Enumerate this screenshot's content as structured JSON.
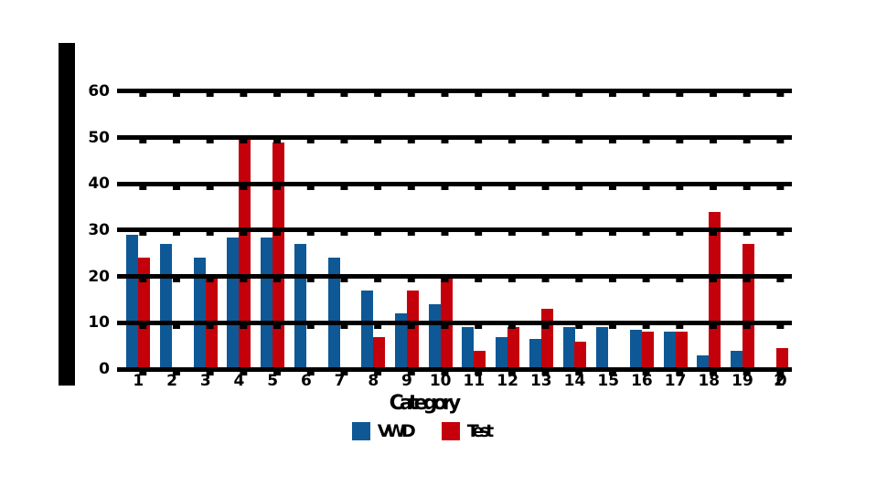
{
  "chart_data": {
    "type": "bar",
    "title": "",
    "xlabel": "Category",
    "ylabel": "",
    "categories": [
      "1",
      "2",
      "3",
      "4",
      "5",
      "6",
      "7",
      "8",
      "9",
      "10",
      "11",
      "12",
      "13",
      "14",
      "15",
      "16",
      "17",
      "18",
      "19",
      "20"
    ],
    "series": [
      {
        "name": "VWD",
        "color": "#0E5896",
        "values": [
          29,
          27,
          24,
          28.5,
          28.5,
          27,
          24,
          17,
          12,
          14,
          9,
          7,
          6.5,
          9,
          9,
          8.5,
          8,
          3,
          4,
          0
        ]
      },
      {
        "name": "Test",
        "color": "#C4000A",
        "values": [
          24,
          0,
          19.5,
          50.5,
          49,
          0,
          0,
          7,
          17,
          19.5,
          4,
          9,
          13,
          6,
          0,
          8,
          8,
          34,
          27,
          4.5
        ]
      }
    ],
    "yticks": [
      0,
      10,
      20,
      30,
      40,
      50,
      60
    ],
    "ylim": [
      0,
      64
    ],
    "grid": true,
    "grid_color": "#000000",
    "axis_spine_color": "#000000",
    "text_color": "#000000",
    "legend_position": "bottom"
  }
}
